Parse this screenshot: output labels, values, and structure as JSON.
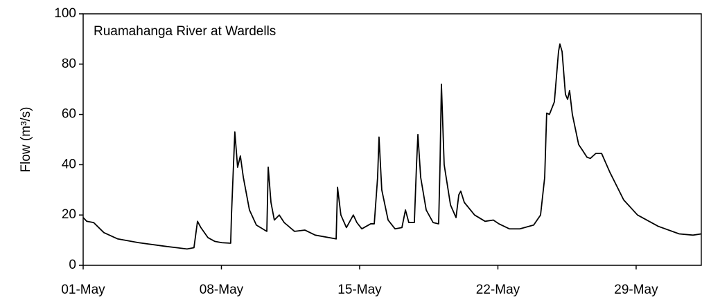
{
  "chart_data": {
    "type": "line",
    "title": "Ruamahanga River at Wardells",
    "y_label": "Flow (m³/s)",
    "color": "#000000",
    "x": [
      0,
      0.18,
      0.53,
      1.05,
      1.75,
      2.81,
      4.21,
      5.26,
      5.61,
      5.79,
      5.96,
      6.32,
      6.67,
      7.02,
      7.47,
      7.51,
      7.68,
      7.82,
      7.96,
      8.11,
      8.42,
      8.77,
      9.3,
      9.37,
      9.51,
      9.68,
      9.93,
      10.18,
      10.7,
      11.23,
      11.75,
      12.81,
      12.88,
      13.05,
      13.33,
      13.68,
      13.86,
      14.11,
      14.56,
      14.74,
      14.91,
      14.98,
      15.12,
      15.44,
      15.79,
      16.14,
      16.32,
      16.49,
      16.77,
      16.88,
      16.95,
      17.09,
      17.37,
      17.72,
      18.0,
      18.07,
      18.14,
      18.28,
      18.6,
      18.88,
      19.02,
      19.12,
      19.3,
      19.82,
      20.35,
      20.77,
      21.05,
      21.58,
      22.11,
      22.81,
      23.16,
      23.37,
      23.47,
      23.61,
      23.86,
      24.07,
      24.14,
      24.25,
      24.42,
      24.53,
      24.63,
      24.77,
      25.09,
      25.26,
      25.51,
      25.68,
      25.96,
      26.25,
      26.67,
      27.37,
      28.07,
      29.12,
      30.18,
      30.88,
      31.3
    ],
    "values": [
      19,
      17.5,
      17,
      13,
      10.5,
      9,
      7.5,
      6.5,
      7,
      17.5,
      15,
      11,
      9.5,
      9,
      8.8,
      20,
      53,
      39,
      43.5,
      35,
      22,
      16,
      13.5,
      39,
      25,
      18,
      20,
      17,
      13.5,
      14,
      12,
      10.5,
      31,
      20,
      15,
      20,
      17,
      14.5,
      16.5,
      16.5,
      35,
      51,
      30,
      18,
      14.5,
      15,
      22,
      17,
      17,
      40,
      52,
      35,
      22,
      17,
      16.5,
      40,
      72,
      40,
      24,
      19,
      28,
      29.5,
      25,
      20,
      17.5,
      18,
      16.5,
      14.5,
      14.5,
      16,
      20,
      35,
      60.5,
      60,
      65,
      85,
      88,
      85,
      68,
      66,
      69.5,
      60,
      48,
      46,
      43,
      42.5,
      44.5,
      44.5,
      37,
      26,
      20,
      15.5,
      12.5,
      12,
      12.5
    ],
    "xlim": [
      0,
      31.3
    ],
    "xticks": [
      {
        "value": 0,
        "label": "01-May"
      },
      {
        "value": 7,
        "label": "08-May"
      },
      {
        "value": 14,
        "label": "15-May"
      },
      {
        "value": 21,
        "label": "22-May"
      },
      {
        "value": 28,
        "label": "29-May"
      }
    ],
    "ylim": [
      0,
      100
    ],
    "yticks": [
      0,
      20,
      40,
      60,
      80,
      100
    ],
    "grid": false
  }
}
